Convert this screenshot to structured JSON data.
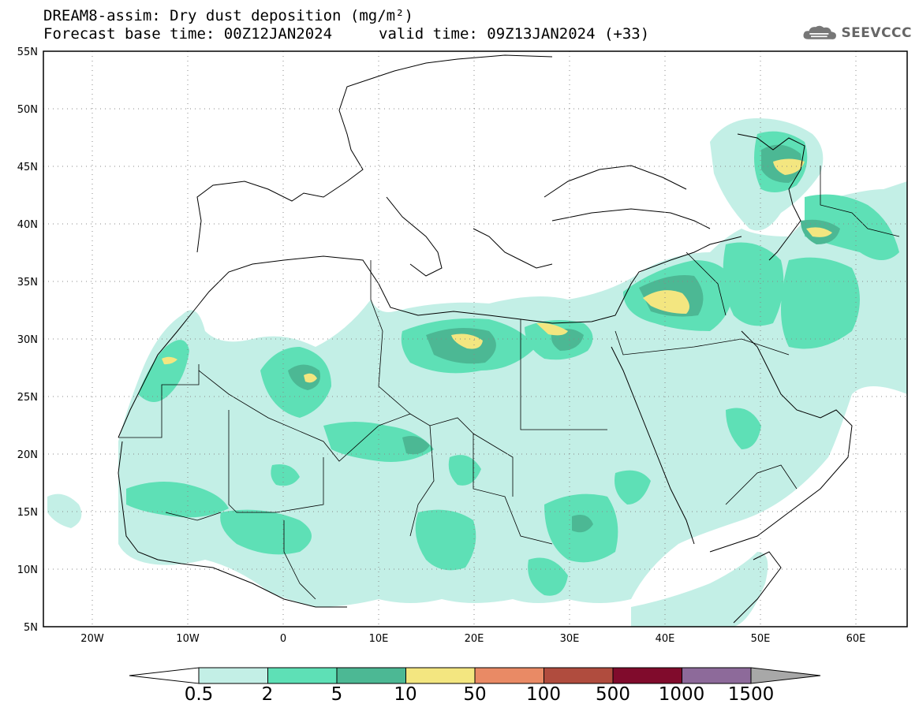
{
  "header": {
    "title_line1": "DREAM8-assim: Dry dust deposition (mg/m²)",
    "title_line2": "Forecast base time: 00Z12JAN2024",
    "valid_time": "valid time: 09Z13JAN2024 (+33)",
    "logo_text": "SEEVCCC"
  },
  "map": {
    "lat_labels": [
      "55N",
      "50N",
      "45N",
      "40N",
      "35N",
      "30N",
      "25N",
      "20N",
      "15N",
      "10N",
      "5N"
    ],
    "lon_labels": [
      "20W",
      "10W",
      "0",
      "10E",
      "20E",
      "30E",
      "40E",
      "50E",
      "60E"
    ]
  },
  "colorbar": {
    "labels": [
      "0.5",
      "2",
      "5",
      "10",
      "50",
      "100",
      "500",
      "1000",
      "1500"
    ],
    "colors": [
      "#c3efe6",
      "#5ee0b6",
      "#4cb894",
      "#f3e680",
      "#e98a65",
      "#b04c3e",
      "#800b2c",
      "#8d6a9a",
      "#a8a8a8"
    ]
  },
  "fill_colors": {
    "lvl1": "#c3efe6",
    "lvl2": "#5ee0b6",
    "lvl3": "#4cb894",
    "lvl4": "#f3e680"
  }
}
